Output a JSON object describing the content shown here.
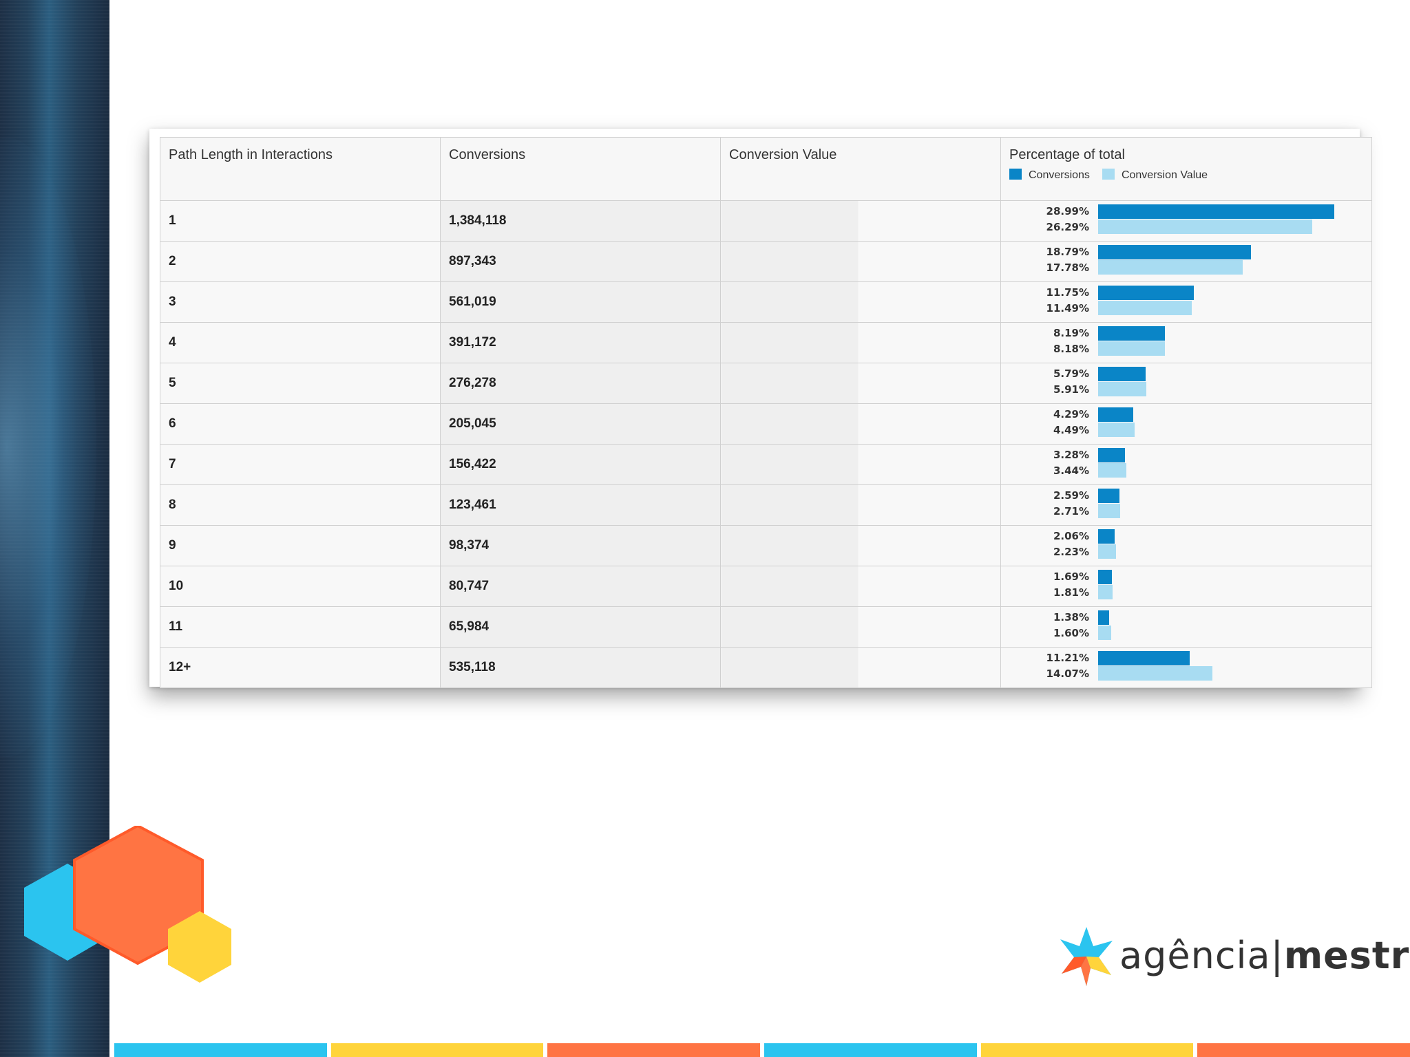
{
  "table": {
    "headers": [
      "Path Length in Interactions",
      "Conversions",
      "Conversion Value",
      "Percentage of total"
    ],
    "legend": {
      "conversions": "Conversions",
      "conversion_value": "Conversion Value"
    },
    "rows": [
      {
        "path": "1",
        "conversions": "1,384,118",
        "pct_conversions": "28.99%",
        "pct_value": "26.29%"
      },
      {
        "path": "2",
        "conversions": "897,343",
        "pct_conversions": "18.79%",
        "pct_value": "17.78%"
      },
      {
        "path": "3",
        "conversions": "561,019",
        "pct_conversions": "11.75%",
        "pct_value": "11.49%"
      },
      {
        "path": "4",
        "conversions": "391,172",
        "pct_conversions": "8.19%",
        "pct_value": "8.18%"
      },
      {
        "path": "5",
        "conversions": "276,278",
        "pct_conversions": "5.79%",
        "pct_value": "5.91%"
      },
      {
        "path": "6",
        "conversions": "205,045",
        "pct_conversions": "4.29%",
        "pct_value": "4.49%"
      },
      {
        "path": "7",
        "conversions": "156,422",
        "pct_conversions": "3.28%",
        "pct_value": "3.44%"
      },
      {
        "path": "8",
        "conversions": "123,461",
        "pct_conversions": "2.59%",
        "pct_value": "2.71%"
      },
      {
        "path": "9",
        "conversions": "98,374",
        "pct_conversions": "2.06%",
        "pct_value": "2.23%"
      },
      {
        "path": "10",
        "conversions": "80,747",
        "pct_conversions": "1.69%",
        "pct_value": "1.81%"
      },
      {
        "path": "11",
        "conversions": "65,984",
        "pct_conversions": "1.38%",
        "pct_value": "1.60%"
      },
      {
        "path": "12+",
        "conversions": "535,118",
        "pct_conversions": "11.21%",
        "pct_value": "14.07%"
      }
    ]
  },
  "chart_data": {
    "type": "bar",
    "categories": [
      "1",
      "2",
      "3",
      "4",
      "5",
      "6",
      "7",
      "8",
      "9",
      "10",
      "11",
      "12+"
    ],
    "series": [
      {
        "name": "Conversions",
        "values": [
          28.99,
          18.79,
          11.75,
          8.19,
          5.79,
          4.29,
          3.28,
          2.59,
          2.06,
          1.69,
          1.38,
          11.21
        ]
      },
      {
        "name": "Conversion Value",
        "values": [
          26.29,
          17.78,
          11.49,
          8.18,
          5.91,
          4.49,
          3.44,
          2.71,
          2.23,
          1.81,
          1.6,
          14.07
        ]
      }
    ],
    "title": "Percentage of total",
    "xlabel": "",
    "ylabel": "",
    "legend": "top-left",
    "orientation": "horizontal"
  },
  "logo": {
    "text_left": "agência",
    "separator": "|",
    "text_right": "mestre"
  },
  "colors": {
    "conversions": "#0a85c7",
    "conversion_value": "#a8dcf2",
    "cyan": "#2bc4ef",
    "orange": "#ff7443",
    "yellow": "#ffd43b",
    "sidebar": "#1f3650"
  }
}
